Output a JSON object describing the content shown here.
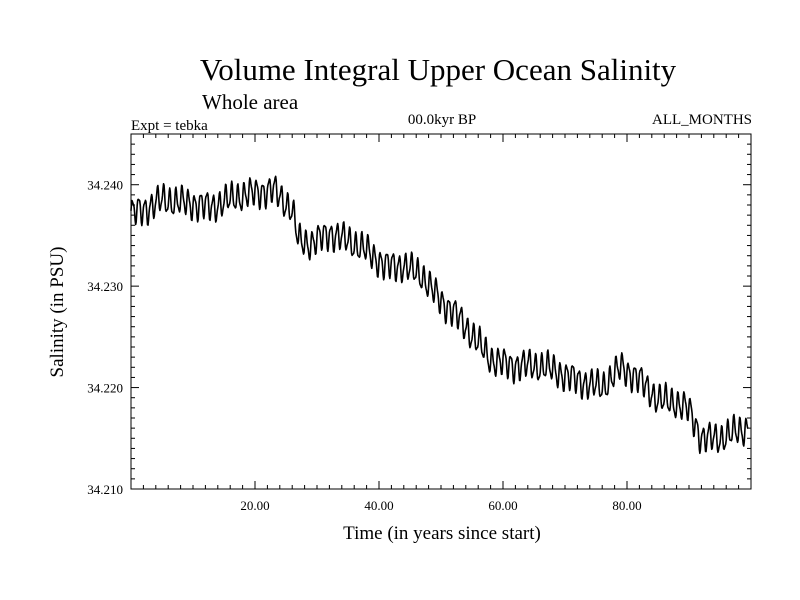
{
  "chart_data": {
    "type": "line",
    "title": "Volume Integral Upper Ocean Salinity",
    "subtitle": "Whole area",
    "annotations": {
      "left": "Expt = tebka",
      "center": "00.0kyr BP",
      "right": "ALL_MONTHS"
    },
    "xlabel": "Time (in years since start)",
    "ylabel": "Salinity (in PSU)",
    "xlim": [
      0,
      100
    ],
    "ylim": [
      34.21,
      34.245
    ],
    "x_ticks": [
      20,
      40,
      60,
      80
    ],
    "x_tick_labels": [
      "20.00",
      "40.00",
      "60.00",
      "80.00"
    ],
    "y_ticks": [
      34.21,
      34.22,
      34.23,
      34.24
    ],
    "y_tick_labels": [
      "34.210",
      "34.220",
      "34.230",
      "34.240"
    ],
    "grid": false,
    "series": [
      {
        "name": "salinity",
        "color": "#000000",
        "seasonal_amplitude": 0.0012,
        "samples_per_year": 12,
        "trend_x": [
          0,
          2,
          5,
          9,
          13,
          17,
          20,
          23,
          26,
          27,
          29,
          32,
          35,
          38,
          41,
          44,
          47,
          50,
          52,
          55,
          58,
          61,
          64,
          67,
          70,
          73,
          76,
          79,
          82,
          85,
          88,
          90,
          92,
          95,
          97,
          99.5
        ],
        "trend_y": [
          34.2372,
          34.2375,
          34.2385,
          34.2382,
          34.2378,
          34.2388,
          34.2392,
          34.2395,
          34.2375,
          34.2345,
          34.2342,
          34.2352,
          34.2345,
          34.2335,
          34.232,
          34.232,
          34.231,
          34.2285,
          34.2275,
          34.2252,
          34.2228,
          34.2222,
          34.2222,
          34.222,
          34.2212,
          34.2205,
          34.22,
          34.222,
          34.2208,
          34.2188,
          34.2185,
          34.2178,
          34.215,
          34.215,
          34.2155,
          34.216
        ]
      }
    ]
  }
}
